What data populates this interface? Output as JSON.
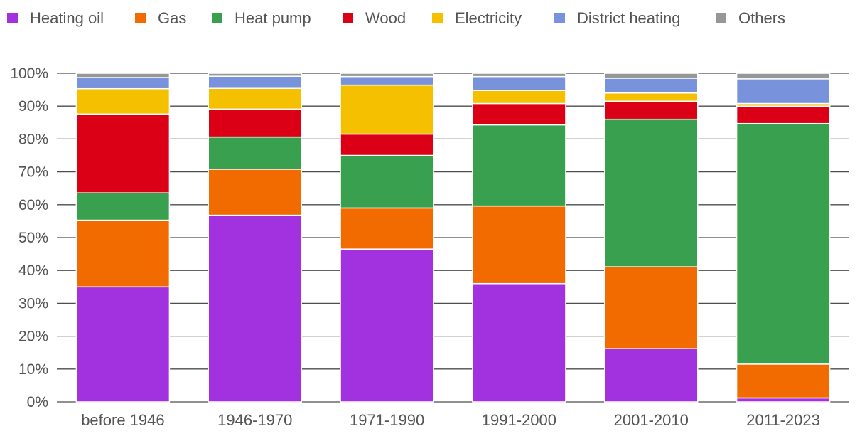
{
  "chart_data": {
    "type": "bar",
    "stacked": true,
    "categories": [
      "before 1946",
      "1946-1970",
      "1971-1990",
      "1991-2000",
      "2001-2010",
      "2011-2023"
    ],
    "series": [
      {
        "name": "Heating oil",
        "color": "#a232e0",
        "values": [
          35.0,
          56.8,
          46.5,
          36.0,
          16.2,
          1.2
        ]
      },
      {
        "name": "Gas",
        "color": "#f26b00",
        "values": [
          20.3,
          14.0,
          12.5,
          23.6,
          24.9,
          10.3
        ]
      },
      {
        "name": "Heat pump",
        "color": "#38a04f",
        "values": [
          8.3,
          9.8,
          16.0,
          24.7,
          44.9,
          73.2
        ]
      },
      {
        "name": "Wood",
        "color": "#dc0016",
        "values": [
          24.0,
          8.5,
          6.5,
          6.5,
          5.5,
          5.3
        ]
      },
      {
        "name": "Electricity",
        "color": "#f5c000",
        "values": [
          7.7,
          6.3,
          14.9,
          4.0,
          2.5,
          0.8
        ]
      },
      {
        "name": "District heating",
        "color": "#7992dc",
        "values": [
          3.4,
          3.7,
          2.6,
          4.2,
          4.5,
          7.5
        ]
      },
      {
        "name": "Others",
        "color": "#979797",
        "values": [
          1.3,
          0.9,
          1.0,
          1.0,
          1.5,
          1.7
        ]
      }
    ],
    "yticks": [
      "0%",
      "10%",
      "20%",
      "30%",
      "40%",
      "50%",
      "60%",
      "70%",
      "80%",
      "90%",
      "100%"
    ],
    "ylim": [
      0,
      100
    ],
    "title": "",
    "xlabel": "",
    "ylabel": "",
    "grid": true,
    "legend_position": "top"
  }
}
